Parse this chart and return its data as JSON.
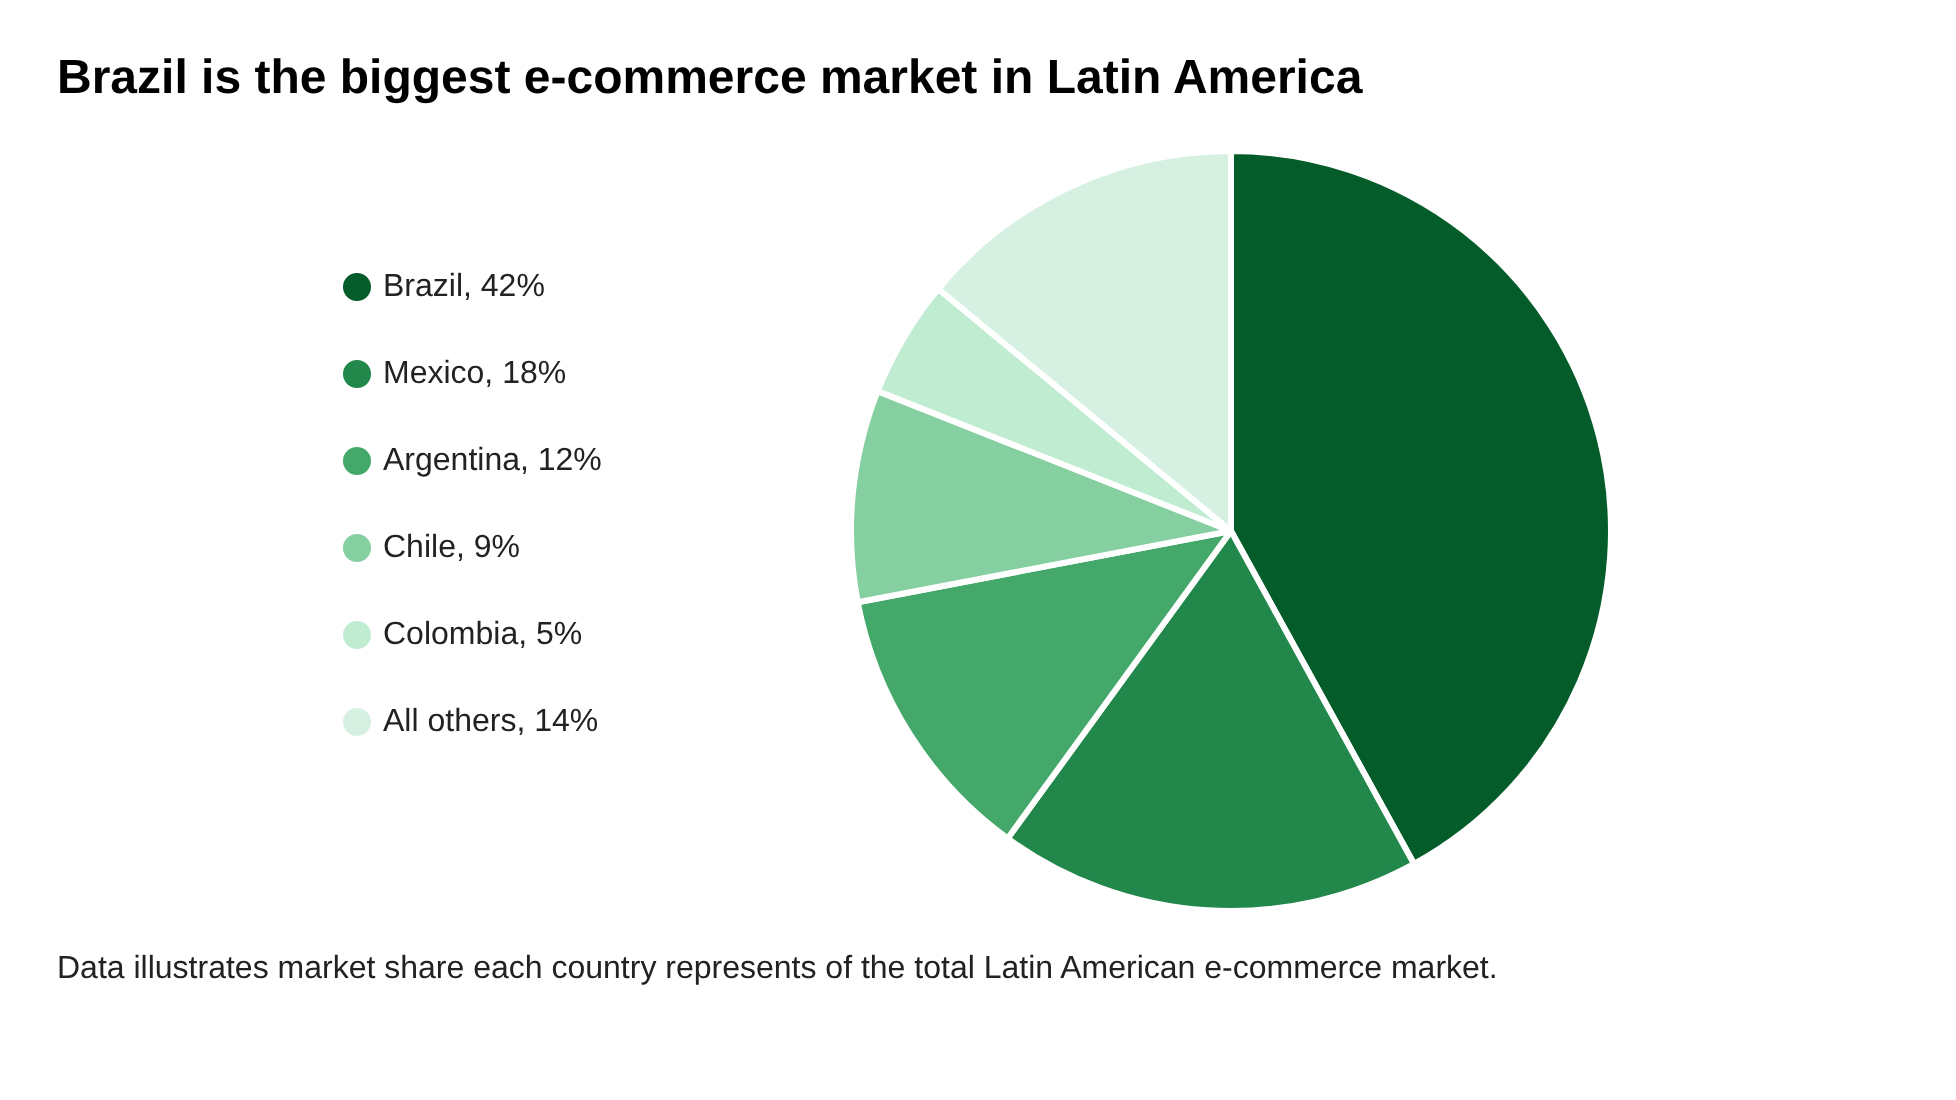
{
  "chart_data": {
    "type": "pie",
    "title": "Brazil is the biggest e-commerce market in Latin America",
    "categories": [
      "Brazil, 42%",
      "Mexico, 18%",
      "Argentina, 12%",
      "Chile, 9%",
      "Colombia, 5%",
      "All others, 14%"
    ],
    "values": [
      42,
      18,
      12,
      9,
      5,
      14
    ],
    "colors": [
      "#045c2a",
      "#21874a",
      "#45a86b",
      "#85cfa0",
      "#c0ecd2",
      "#d6f0e2"
    ],
    "legend": "left",
    "annotations": [
      "Data illustrates market share each country represents of the total Latin American e-commerce market."
    ]
  }
}
